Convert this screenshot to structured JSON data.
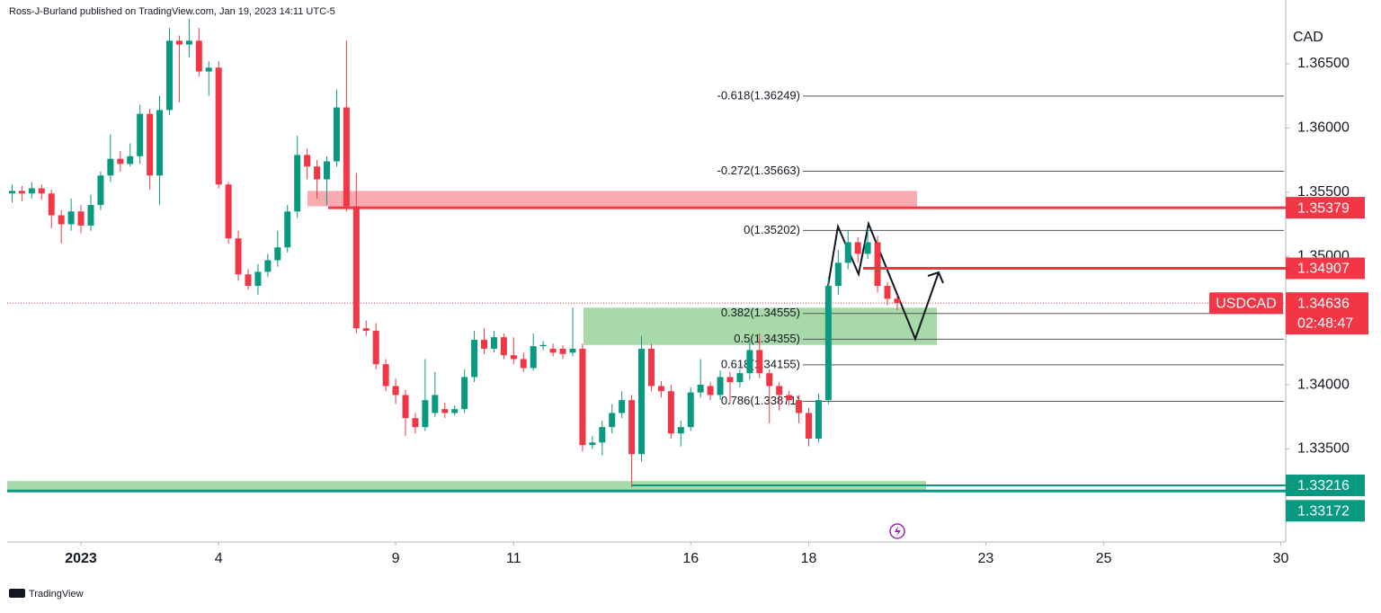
{
  "header": "Ross-J-Burland published on TradingView.com, Jan 19, 2023 14:11 UTC-5",
  "footer": "TradingView",
  "chart_data": {
    "type": "candlestick",
    "currency": "CAD",
    "symbol": "USDCAD",
    "last_price": 1.34636,
    "countdown": "02:48:47",
    "up_color": "#089981",
    "down_color": "#f23645",
    "xlim": [
      -0.5,
      129.5
    ],
    "xticks": [
      {
        "value": 7,
        "label": "2023"
      },
      {
        "value": 21,
        "label": "4"
      },
      {
        "value": 39,
        "label": "9"
      },
      {
        "value": 51,
        "label": "11"
      },
      {
        "value": 69,
        "label": "16"
      },
      {
        "value": 81,
        "label": "18"
      },
      {
        "value": 99,
        "label": "23"
      },
      {
        "value": 111,
        "label": "25"
      },
      {
        "value": 129,
        "label": "30"
      }
    ],
    "ylim": [
      1.32775,
      1.36997
    ],
    "yticks": [
      {
        "value": 1.365,
        "label": "1.36500"
      },
      {
        "value": 1.36,
        "label": "1.36000"
      },
      {
        "value": 1.355,
        "label": "1.35500"
      },
      {
        "value": 1.35,
        "label": "1.35000"
      },
      {
        "value": 1.34,
        "label": "1.34000"
      },
      {
        "value": 1.335,
        "label": "1.33500"
      }
    ],
    "levels": [
      {
        "value": 1.35379,
        "color": "#f23645"
      },
      {
        "value": 1.34907,
        "color": "#f23645"
      },
      {
        "value": 1.33216,
        "color": "#089981"
      },
      {
        "value": 1.33172,
        "color": "#089981"
      }
    ],
    "fibonacci": [
      {
        "value": 1.36249,
        "label": "-0.618(1.36249)"
      },
      {
        "value": 1.35663,
        "label": "-0.272(1.35663)"
      },
      {
        "value": 1.35202,
        "label": "0(1.35202)"
      },
      {
        "value": 1.34555,
        "label": "0.382(1.34555)"
      },
      {
        "value": 1.34355,
        "label": "0.5(1.34355)"
      },
      {
        "value": 1.34155,
        "label": "0.618(1.34155)"
      },
      {
        "value": 1.33871,
        "label": "0.786(1.33871)"
      }
    ],
    "zones": [
      {
        "color": "#f7a1a8",
        "ylim": [
          1.3539,
          1.3551
        ]
      },
      {
        "color": "#9fd6a0",
        "ylim": [
          1.3431,
          1.346
        ]
      },
      {
        "color": "#9fd6a0",
        "ylim": [
          1.3317,
          1.3325
        ]
      }
    ],
    "candles": [
      {
        "o": 1.3549,
        "h": 1.3556,
        "l": 1.3542,
        "c": 1.3551
      },
      {
        "o": 1.3551,
        "h": 1.3555,
        "l": 1.3543,
        "c": 1.3549
      },
      {
        "o": 1.3549,
        "h": 1.3558,
        "l": 1.3545,
        "c": 1.3553
      },
      {
        "o": 1.3553,
        "h": 1.3556,
        "l": 1.3544,
        "c": 1.3549
      },
      {
        "o": 1.3549,
        "h": 1.3552,
        "l": 1.3522,
        "c": 1.3532
      },
      {
        "o": 1.3532,
        "h": 1.3536,
        "l": 1.351,
        "c": 1.3525
      },
      {
        "o": 1.3525,
        "h": 1.3545,
        "l": 1.352,
        "c": 1.3535
      },
      {
        "o": 1.3535,
        "h": 1.354,
        "l": 1.3518,
        "c": 1.3524
      },
      {
        "o": 1.3524,
        "h": 1.3548,
        "l": 1.352,
        "c": 1.354
      },
      {
        "o": 1.354,
        "h": 1.3566,
        "l": 1.3536,
        "c": 1.3563
      },
      {
        "o": 1.3563,
        "h": 1.3595,
        "l": 1.3558,
        "c": 1.3576
      },
      {
        "o": 1.3576,
        "h": 1.3582,
        "l": 1.3566,
        "c": 1.3572
      },
      {
        "o": 1.3572,
        "h": 1.3588,
        "l": 1.357,
        "c": 1.3578
      },
      {
        "o": 1.3578,
        "h": 1.3618,
        "l": 1.3572,
        "c": 1.3611
      },
      {
        "o": 1.3611,
        "h": 1.3615,
        "l": 1.3552,
        "c": 1.3563
      },
      {
        "o": 1.3563,
        "h": 1.3625,
        "l": 1.354,
        "c": 1.3614
      },
      {
        "o": 1.3614,
        "h": 1.3678,
        "l": 1.361,
        "c": 1.3668
      },
      {
        "o": 1.3668,
        "h": 1.3672,
        "l": 1.362,
        "c": 1.3665
      },
      {
        "o": 1.3665,
        "h": 1.3685,
        "l": 1.3655,
        "c": 1.3668
      },
      {
        "o": 1.3668,
        "h": 1.3678,
        "l": 1.364,
        "c": 1.3644
      },
      {
        "o": 1.3644,
        "h": 1.3652,
        "l": 1.3625,
        "c": 1.3647
      },
      {
        "o": 1.3647,
        "h": 1.3652,
        "l": 1.3553,
        "c": 1.3556
      },
      {
        "o": 1.3556,
        "h": 1.3558,
        "l": 1.351,
        "c": 1.3514
      },
      {
        "o": 1.3514,
        "h": 1.352,
        "l": 1.3481,
        "c": 1.3486
      },
      {
        "o": 1.3486,
        "h": 1.349,
        "l": 1.3474,
        "c": 1.3477
      },
      {
        "o": 1.3477,
        "h": 1.3494,
        "l": 1.347,
        "c": 1.3488
      },
      {
        "o": 1.3488,
        "h": 1.3502,
        "l": 1.3484,
        "c": 1.3497
      },
      {
        "o": 1.3497,
        "h": 1.352,
        "l": 1.3492,
        "c": 1.3507
      },
      {
        "o": 1.3507,
        "h": 1.354,
        "l": 1.3503,
        "c": 1.3535
      },
      {
        "o": 1.3535,
        "h": 1.3594,
        "l": 1.353,
        "c": 1.3579
      },
      {
        "o": 1.3579,
        "h": 1.3584,
        "l": 1.356,
        "c": 1.357
      },
      {
        "o": 1.357,
        "h": 1.3575,
        "l": 1.3545,
        "c": 1.356
      },
      {
        "o": 1.356,
        "h": 1.3578,
        "l": 1.354,
        "c": 1.3574
      },
      {
        "o": 1.3574,
        "h": 1.363,
        "l": 1.357,
        "c": 1.3616
      },
      {
        "o": 1.3616,
        "h": 1.3668,
        "l": 1.3535,
        "c": 1.3539
      },
      {
        "o": 1.3539,
        "h": 1.3565,
        "l": 1.344,
        "c": 1.3444
      },
      {
        "o": 1.3444,
        "h": 1.345,
        "l": 1.3438,
        "c": 1.3442
      },
      {
        "o": 1.3442,
        "h": 1.3448,
        "l": 1.3412,
        "c": 1.3416
      },
      {
        "o": 1.3416,
        "h": 1.342,
        "l": 1.3395,
        "c": 1.3399
      },
      {
        "o": 1.3399,
        "h": 1.3405,
        "l": 1.3385,
        "c": 1.3392
      },
      {
        "o": 1.3392,
        "h": 1.3396,
        "l": 1.336,
        "c": 1.3374
      },
      {
        "o": 1.3374,
        "h": 1.3378,
        "l": 1.3362,
        "c": 1.3367
      },
      {
        "o": 1.3367,
        "h": 1.342,
        "l": 1.3364,
        "c": 1.3388
      },
      {
        "o": 1.3378,
        "h": 1.341,
        "l": 1.3375,
        "c": 1.3392
      },
      {
        "o": 1.3381,
        "h": 1.3386,
        "l": 1.3374,
        "c": 1.3378
      },
      {
        "o": 1.3378,
        "h": 1.3384,
        "l": 1.3376,
        "c": 1.3381
      },
      {
        "o": 1.3381,
        "h": 1.3412,
        "l": 1.3378,
        "c": 1.3406
      },
      {
        "o": 1.3406,
        "h": 1.3442,
        "l": 1.3402,
        "c": 1.3435
      },
      {
        "o": 1.3435,
        "h": 1.3444,
        "l": 1.3424,
        "c": 1.3428
      },
      {
        "o": 1.3428,
        "h": 1.3442,
        "l": 1.3425,
        "c": 1.3437
      },
      {
        "o": 1.3437,
        "h": 1.344,
        "l": 1.342,
        "c": 1.3423
      },
      {
        "o": 1.3423,
        "h": 1.3437,
        "l": 1.3416,
        "c": 1.342
      },
      {
        "o": 1.342,
        "h": 1.3425,
        "l": 1.341,
        "c": 1.3413
      },
      {
        "o": 1.3413,
        "h": 1.344,
        "l": 1.3411,
        "c": 1.343
      },
      {
        "o": 1.343,
        "h": 1.3434,
        "l": 1.3427,
        "c": 1.3431
      },
      {
        "o": 1.3428,
        "h": 1.3432,
        "l": 1.3422,
        "c": 1.3425
      },
      {
        "o": 1.3428,
        "h": 1.3431,
        "l": 1.342,
        "c": 1.3424
      },
      {
        "o": 1.3425,
        "h": 1.346,
        "l": 1.3422,
        "c": 1.3428
      },
      {
        "o": 1.3428,
        "h": 1.3432,
        "l": 1.3348,
        "c": 1.3353
      },
      {
        "o": 1.3353,
        "h": 1.336,
        "l": 1.335,
        "c": 1.3355
      },
      {
        "o": 1.3355,
        "h": 1.3372,
        "l": 1.3345,
        "c": 1.3367
      },
      {
        "o": 1.3367,
        "h": 1.3385,
        "l": 1.3362,
        "c": 1.3378
      },
      {
        "o": 1.3378,
        "h": 1.3395,
        "l": 1.3374,
        "c": 1.3388
      },
      {
        "o": 1.3388,
        "h": 1.3392,
        "l": 1.332,
        "c": 1.3346
      },
      {
        "o": 1.3346,
        "h": 1.3438,
        "l": 1.334,
        "c": 1.3428
      },
      {
        "o": 1.3428,
        "h": 1.3432,
        "l": 1.3395,
        "c": 1.3399
      },
      {
        "o": 1.3399,
        "h": 1.3403,
        "l": 1.339,
        "c": 1.3395
      },
      {
        "o": 1.3395,
        "h": 1.34,
        "l": 1.3358,
        "c": 1.3362
      },
      {
        "o": 1.3362,
        "h": 1.3372,
        "l": 1.3352,
        "c": 1.3367
      },
      {
        "o": 1.3367,
        "h": 1.3398,
        "l": 1.3364,
        "c": 1.3394
      },
      {
        "o": 1.3394,
        "h": 1.342,
        "l": 1.339,
        "c": 1.34
      },
      {
        "o": 1.3399,
        "h": 1.3402,
        "l": 1.3388,
        "c": 1.3392
      },
      {
        "o": 1.3392,
        "h": 1.3411,
        "l": 1.3388,
        "c": 1.3406
      },
      {
        "o": 1.3406,
        "h": 1.341,
        "l": 1.3385,
        "c": 1.3402
      },
      {
        "o": 1.3402,
        "h": 1.3412,
        "l": 1.3398,
        "c": 1.3409
      },
      {
        "o": 1.3409,
        "h": 1.3434,
        "l": 1.3404,
        "c": 1.3427
      },
      {
        "o": 1.3427,
        "h": 1.344,
        "l": 1.3405,
        "c": 1.3409
      },
      {
        "o": 1.3409,
        "h": 1.3412,
        "l": 1.337,
        "c": 1.3399
      },
      {
        "o": 1.3399,
        "h": 1.3402,
        "l": 1.338,
        "c": 1.3392
      },
      {
        "o": 1.3392,
        "h": 1.3395,
        "l": 1.3384,
        "c": 1.3388
      },
      {
        "o": 1.3388,
        "h": 1.3392,
        "l": 1.337,
        "c": 1.3378
      },
      {
        "o": 1.3378,
        "h": 1.3382,
        "l": 1.3352,
        "c": 1.3358
      },
      {
        "o": 1.3358,
        "h": 1.3393,
        "l": 1.3355,
        "c": 1.3388
      },
      {
        "o": 1.3388,
        "h": 1.3484,
        "l": 1.3385,
        "c": 1.3477
      },
      {
        "o": 1.3477,
        "h": 1.3505,
        "l": 1.347,
        "c": 1.3495
      },
      {
        "o": 1.3495,
        "h": 1.352,
        "l": 1.349,
        "c": 1.3511
      },
      {
        "o": 1.3511,
        "h": 1.3515,
        "l": 1.3495,
        "c": 1.3502
      },
      {
        "o": 1.3502,
        "h": 1.3522,
        "l": 1.3498,
        "c": 1.3511
      },
      {
        "o": 1.3511,
        "h": 1.3516,
        "l": 1.3472,
        "c": 1.3477
      },
      {
        "o": 1.3477,
        "h": 1.348,
        "l": 1.3462,
        "c": 1.3467
      },
      {
        "o": 1.3467,
        "h": 1.347,
        "l": 1.3458,
        "c": 1.34636
      }
    ]
  }
}
